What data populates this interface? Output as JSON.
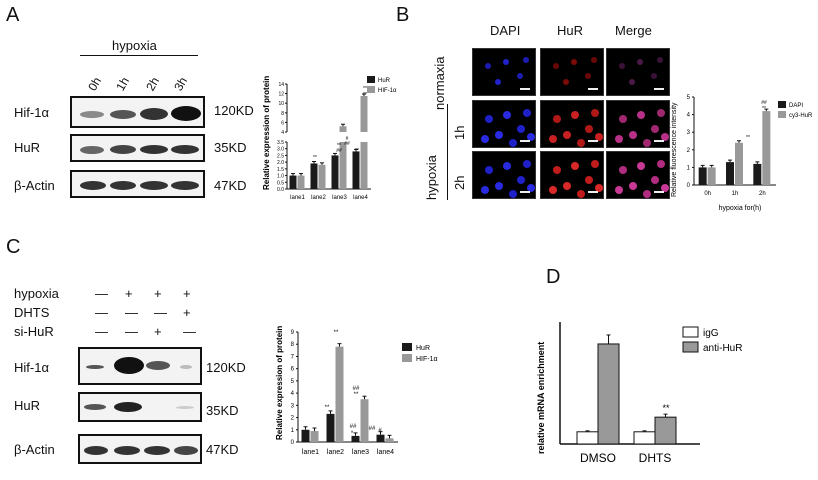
{
  "panels": {
    "A": {
      "letter": "A",
      "condition_title": "hypoxia",
      "timepoints": [
        "0h",
        "1h",
        "2h",
        "3h"
      ],
      "proteins": [
        "Hif-1α",
        "HuR",
        "β-Actin"
      ],
      "sizes": [
        "120KD",
        "35KD",
        "47KD"
      ],
      "chart": {
        "ylabel": "Relative expression of protein",
        "categories": [
          "lane1",
          "lane2",
          "lane3",
          "lane4"
        ],
        "legend": [
          "HuR",
          "HIF-1α"
        ],
        "yticks_low": [
          "0.0",
          "0.5",
          "1.0",
          "1.5",
          "2.0",
          "2.5",
          "3.0",
          "3.5"
        ],
        "yticks_high": [
          "4",
          "6",
          "8",
          "10",
          "12",
          "14"
        ],
        "annotations": [
          "**",
          "**",
          "#",
          "##",
          "**",
          "**",
          "##",
          "**"
        ]
      }
    },
    "B": {
      "letter": "B",
      "columns": [
        "DAPI",
        "HuR",
        "Merge"
      ],
      "row_labels": [
        "normaxia",
        "1h",
        "2h"
      ],
      "group_label": "hypoxia",
      "chart": {
        "ylabel": "Relative fluorescence intensity",
        "xlabel": "hypoxia for(h)",
        "categories": [
          "0h",
          "1h",
          "2h"
        ],
        "legend": [
          "DAPI",
          "cy3-HuR"
        ],
        "yticks": [
          "0",
          "1",
          "2",
          "3",
          "4",
          "5"
        ],
        "annotations": [
          "**",
          "##",
          "**"
        ]
      }
    },
    "C": {
      "letter": "C",
      "conditions": [
        "hypoxia",
        "DHTS",
        "si-HuR"
      ],
      "signs": [
        [
          "—",
          "+",
          "+",
          "+"
        ],
        [
          "—",
          "—",
          "—",
          "+"
        ],
        [
          "—",
          "—",
          "+",
          "—"
        ]
      ],
      "proteins": [
        "Hif-1α",
        "HuR",
        "β-Actin"
      ],
      "sizes": [
        "120KD",
        "35KD",
        "47KD"
      ],
      "chart": {
        "ylabel": "Relative expression of protein",
        "categories": [
          "lane1",
          "lane2",
          "lane3",
          "lane4"
        ],
        "legend": [
          "HuR",
          "HIF-1α"
        ],
        "yticks": [
          "0",
          "1",
          "2",
          "3",
          "4",
          "5",
          "6",
          "7",
          "8",
          "9"
        ],
        "annotations": [
          "**",
          "**",
          "##",
          "**",
          "##",
          "*",
          "##",
          "#"
        ]
      }
    },
    "D": {
      "letter": "D",
      "chart": {
        "ylabel": "relative mRNA enrichment",
        "categories": [
          "DMSO",
          "DHTS"
        ],
        "legend": [
          "igG",
          "anti-HuR"
        ],
        "annotations": [
          "**"
        ]
      }
    }
  },
  "chart_data": [
    {
      "type": "bar",
      "panel": "A",
      "ylabel": "Relative expression of protein",
      "categories": [
        "lane1",
        "lane2",
        "lane3",
        "lane4"
      ],
      "broken_axis": {
        "lower": [
          0,
          3.5
        ],
        "upper": [
          4,
          14
        ]
      },
      "series": [
        {
          "name": "HuR",
          "color": "#1a1a1a",
          "values": [
            1.0,
            1.9,
            2.5,
            2.8
          ]
        },
        {
          "name": "HIF-1α",
          "color": "#999999",
          "values": [
            1.0,
            1.8,
            5.2,
            11.5
          ]
        }
      ]
    },
    {
      "type": "bar",
      "panel": "B",
      "ylabel": "Relative fluorescence intensity",
      "xlabel": "hypoxia for(h)",
      "categories": [
        "0h",
        "1h",
        "2h"
      ],
      "ylim": [
        0,
        5
      ],
      "series": [
        {
          "name": "DAPI",
          "color": "#1a1a1a",
          "values": [
            1.0,
            1.3,
            1.2
          ]
        },
        {
          "name": "cy3-HuR",
          "color": "#999999",
          "values": [
            1.0,
            2.4,
            4.2
          ]
        }
      ]
    },
    {
      "type": "bar",
      "panel": "C",
      "ylabel": "Relative expression of protein",
      "categories": [
        "lane1",
        "lane2",
        "lane3",
        "lane4"
      ],
      "ylim": [
        0,
        9
      ],
      "series": [
        {
          "name": "HuR",
          "color": "#1a1a1a",
          "values": [
            1.0,
            2.3,
            0.5,
            0.6
          ]
        },
        {
          "name": "HIF-1α",
          "color": "#999999",
          "values": [
            0.9,
            7.8,
            3.5,
            0.3
          ]
        }
      ]
    },
    {
      "type": "bar",
      "panel": "D",
      "ylabel": "relative mRNA enrichment",
      "categories": [
        "DMSO",
        "DHTS"
      ],
      "series": [
        {
          "name": "igG",
          "color": "#ffffff",
          "values": [
            1.0,
            1.0
          ]
        },
        {
          "name": "anti-HuR",
          "color": "#999999",
          "values": [
            8.2,
            2.2
          ]
        }
      ]
    }
  ]
}
